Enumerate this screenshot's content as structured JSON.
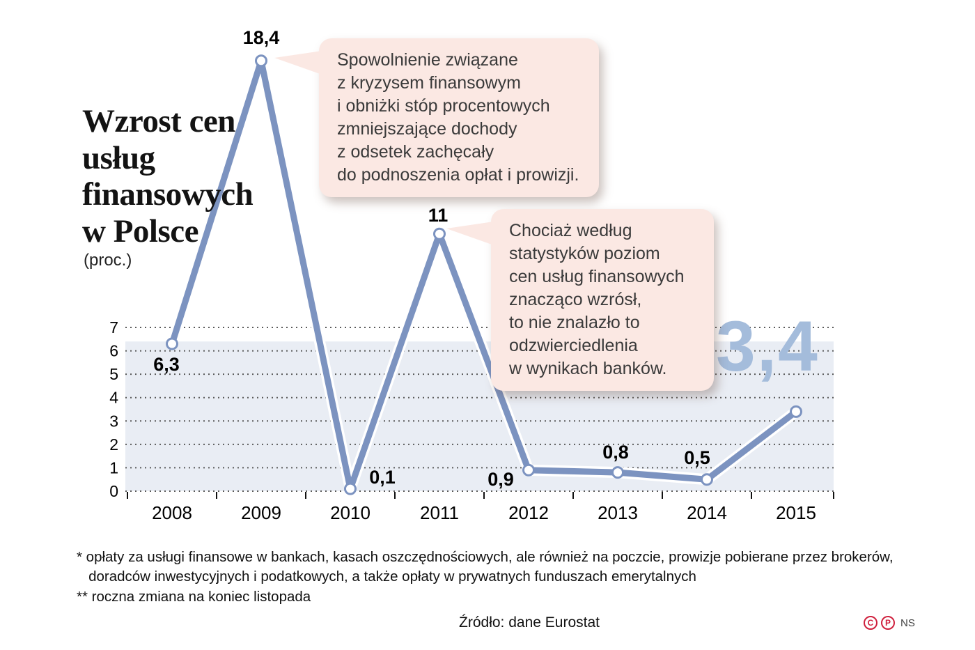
{
  "title": {
    "lines": [
      "Wzrost cen",
      "usług",
      "finansowych",
      "w Polsce"
    ],
    "unit": "(proc.)"
  },
  "chart_data": {
    "type": "line",
    "title": "Wzrost cen usług finansowych w Polsce (proc.)",
    "categories": [
      "2008",
      "2009",
      "2010",
      "2011",
      "2012",
      "2013",
      "2014",
      "2015"
    ],
    "values": [
      6.3,
      18.4,
      0.1,
      11,
      0.9,
      0.8,
      0.5,
      3.4
    ],
    "point_labels": [
      "6,3",
      "18,4",
      "0,1",
      "11",
      "0,9",
      "0,8",
      "0,5",
      "3,4"
    ],
    "yticks": [
      0,
      1,
      2,
      3,
      4,
      5,
      6,
      7
    ],
    "ylim": [
      0,
      7
    ],
    "grid": "dotted horizontal",
    "line_color": "#7c93c0",
    "band_color": "#e9edf4",
    "highlight_label": "3,4",
    "highlight_color": "#a4bcdb"
  },
  "callouts": [
    {
      "lines": [
        "Spowolnienie związane",
        "z kryzysem finansowym",
        "i obniżki stóp procentowych",
        "zmniejszające dochody",
        "z odsetek zachęcały",
        "do podnoszenia opłat i prowizji."
      ]
    },
    {
      "lines": [
        "Chociaż według",
        "statystyków poziom",
        "cen usług finansowych",
        "znacząco wzrósł,",
        "to nie znalazło to",
        "odzwierciedlenia",
        "w wynikach banków."
      ]
    }
  ],
  "footnotes": [
    "* opłaty za usługi finansowe w bankach, kasach oszczędnościowych, ale również na poczcie, prowizje pobierane przez brokerów,",
    "   doradców inwestycyjnych i podatkowych, a także opłaty w prywatnych funduszach emerytalnych",
    "** roczna zmiana na koniec listopada"
  ],
  "source": "Źródło: dane Eurostat",
  "branding": {
    "copyright": "C",
    "phonogram": "P",
    "agency": "NS"
  }
}
